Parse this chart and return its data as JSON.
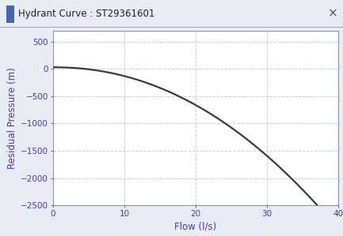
{
  "title_bar": "Hydrant Curve : ST29361601",
  "xlabel": "Flow (l/s)",
  "ylabel": "Residual Pressure (m)",
  "xlim": [
    0,
    40
  ],
  "ylim": [
    -2500,
    700
  ],
  "yticks": [
    -2500,
    -2000,
    -1500,
    -1000,
    -500,
    0,
    500
  ],
  "xticks": [
    0,
    10,
    20,
    30,
    40
  ],
  "curve_color": "#3a3a3a",
  "curve_linewidth": 1.6,
  "grid_color": "#c8cfe0",
  "grid_linestyle": "--",
  "axis_label_color": "#5533bb",
  "tick_label_color": "#5533bb",
  "background_color": "#e8ecf4",
  "plot_bg_color": "#ffffff",
  "title_bar_bg": "#dde1eb",
  "title_text_color": "#222222",
  "P0": 30,
  "k": 1.28,
  "n": 2.1,
  "x_start": 0,
  "x_end": 40,
  "num_points": 500
}
